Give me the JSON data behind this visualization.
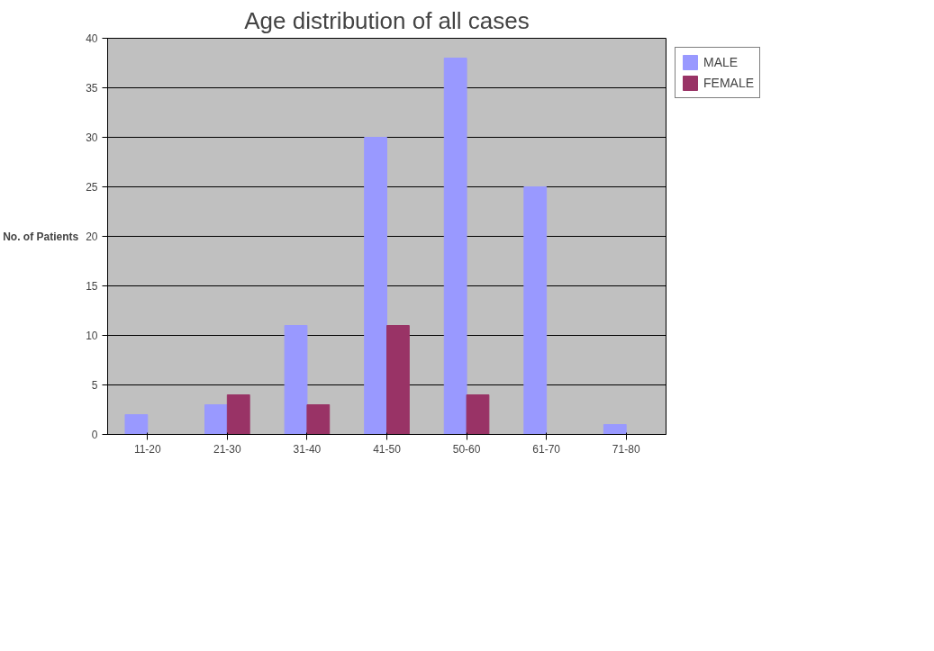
{
  "chart_data": {
    "type": "bar",
    "title": "Age distribution of all cases",
    "ylabel": "No. of Patients",
    "categories": [
      "11-20",
      "21-30",
      "31-40",
      "41-50",
      "50-60",
      "61-70",
      "71-80"
    ],
    "series": [
      {
        "name": "MALE",
        "color": "#9999ff",
        "values": [
          2,
          3,
          11,
          30,
          38,
          25,
          1
        ]
      },
      {
        "name": "FEMALE",
        "color": "#993366",
        "values": [
          0,
          4,
          3,
          11,
          4,
          0,
          0
        ]
      }
    ],
    "ylim": [
      0,
      40
    ],
    "yticks": [
      0,
      5,
      10,
      15,
      20,
      25,
      30,
      35,
      40
    ],
    "grid": "y",
    "legend": "right"
  }
}
